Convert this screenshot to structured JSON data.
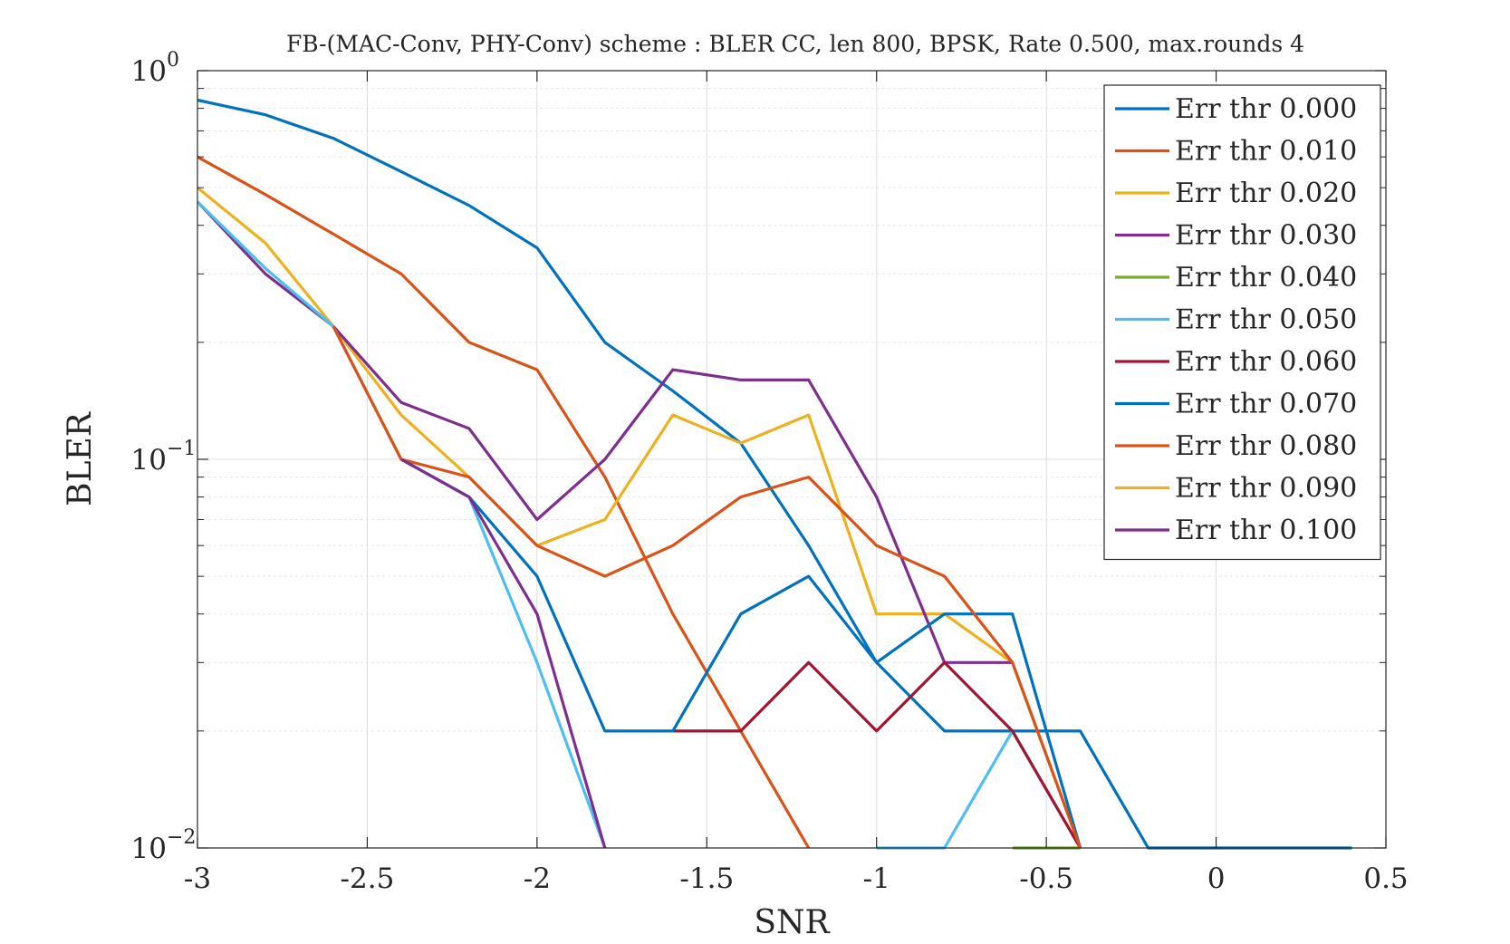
{
  "chart_data": {
    "type": "line",
    "title": "FB-(MAC-Conv, PHY-Conv) scheme : BLER CC, len 800, BPSK, Rate 0.500, max.rounds 4",
    "xlabel": "SNR",
    "ylabel": "BLER",
    "xlim": [
      -3,
      0.5
    ],
    "ylim": [
      0.01,
      1
    ],
    "yscale": "log",
    "grid": true,
    "legend_position": "top-right",
    "x_ticks": [
      "-3",
      "-2.5",
      "-2",
      "-1.5",
      "-1",
      "-0.5",
      "0",
      "0.5"
    ],
    "y_ticks": [
      {
        "base": "10",
        "exp": "0",
        "value": 1
      },
      {
        "base": "10",
        "exp": "−1",
        "value": 0.1
      },
      {
        "base": "10",
        "exp": "−2",
        "value": 0.01
      }
    ],
    "series": [
      {
        "name": "Err thr 0.000",
        "color": "#0072BD",
        "points": [
          [
            -3,
            0.84
          ],
          [
            -2.8,
            0.77
          ],
          [
            -2.6,
            0.67
          ],
          [
            -2.4,
            0.55
          ],
          [
            -2.2,
            0.45
          ],
          [
            -2.0,
            0.35
          ],
          [
            -1.8,
            0.2
          ],
          [
            -1.6,
            0.15
          ],
          [
            -1.4,
            0.11
          ],
          [
            -1.2,
            0.06
          ],
          [
            -1.0,
            0.03
          ],
          [
            -0.8,
            0.02
          ],
          [
            -0.6,
            0.02
          ],
          [
            -0.4,
            0.02
          ],
          [
            -0.2,
            0.01
          ],
          [
            0,
            0.01
          ],
          [
            0.2,
            0.01
          ],
          [
            0.4,
            0.01
          ]
        ]
      },
      {
        "name": "Err thr 0.010",
        "color": "#D95319",
        "points": [
          [
            -3,
            0.6
          ],
          [
            -2.8,
            0.48
          ],
          [
            -2.6,
            0.38
          ],
          [
            -2.4,
            0.3
          ],
          [
            -2.2,
            0.2
          ],
          [
            -2.0,
            0.17
          ],
          [
            -1.8,
            0.09
          ],
          [
            -1.6,
            0.04
          ],
          [
            -1.4,
            0.02
          ],
          [
            -1.2,
            0.01
          ]
        ]
      },
      {
        "name": "Err thr 0.020",
        "color": "#EDB120",
        "points": [
          [
            -3,
            0.5
          ],
          [
            -2.8,
            0.36
          ],
          [
            -2.6,
            0.22
          ],
          [
            -2.4,
            0.13
          ],
          [
            -2.2,
            0.09
          ],
          [
            -2.0,
            0.06
          ],
          [
            -1.8,
            0.07
          ],
          [
            -1.6,
            0.13
          ],
          [
            -1.4,
            0.11
          ],
          [
            -1.2,
            0.13
          ],
          [
            -1.0,
            0.04
          ],
          [
            -0.8,
            0.04
          ],
          [
            -0.6,
            0.03
          ],
          [
            -0.4,
            0.01
          ]
        ]
      },
      {
        "name": "Err thr 0.030",
        "color": "#7E2F8E",
        "points": [
          [
            -3,
            0.46
          ],
          [
            -2.8,
            0.3
          ],
          [
            -2.6,
            0.22
          ],
          [
            -2.4,
            0.14
          ],
          [
            -2.2,
            0.12
          ],
          [
            -2.0,
            0.07
          ],
          [
            -1.8,
            0.1
          ],
          [
            -1.6,
            0.17
          ],
          [
            -1.4,
            0.16
          ],
          [
            -1.2,
            0.16
          ],
          [
            -1.0,
            0.08
          ],
          [
            -0.8,
            0.03
          ],
          [
            -0.6,
            0.03
          ]
        ]
      },
      {
        "name": "Err thr 0.040",
        "color": "#77AC30",
        "points": [
          [
            -0.6,
            0.01
          ],
          [
            -0.4,
            0.01
          ]
        ]
      },
      {
        "name": "Err thr 0.050",
        "color": "#4DBEEE",
        "points": [
          [
            -3,
            0.46
          ],
          [
            -2.8,
            0.31
          ],
          [
            -2.6,
            0.22
          ],
          [
            -2.4,
            0.1
          ],
          [
            -2.2,
            0.08
          ],
          [
            -2.0,
            0.03
          ],
          [
            -1.8,
            0.01
          ],
          [
            null,
            null
          ],
          [
            -1.0,
            0.01
          ],
          [
            -0.8,
            0.01
          ],
          [
            -0.6,
            0.02
          ],
          [
            -0.4,
            0.01
          ]
        ]
      },
      {
        "name": "Err thr 0.060",
        "color": "#A2142F",
        "points": [
          [
            -1.6,
            0.02
          ],
          [
            -1.4,
            0.02
          ],
          [
            -1.2,
            0.03
          ],
          [
            -1.0,
            0.02
          ],
          [
            -0.8,
            0.03
          ],
          [
            -0.6,
            0.02
          ],
          [
            -0.4,
            0.01
          ]
        ]
      },
      {
        "name": "Err thr 0.070",
        "color": "#0072BD",
        "points": [
          [
            -2.4,
            0.1
          ],
          [
            -2.2,
            0.08
          ],
          [
            -2.0,
            0.05
          ],
          [
            -1.8,
            0.02
          ],
          [
            -1.6,
            0.02
          ],
          [
            -1.4,
            0.04
          ],
          [
            -1.2,
            0.05
          ],
          [
            -1.0,
            0.03
          ],
          [
            -0.8,
            0.04
          ],
          [
            -0.6,
            0.04
          ],
          [
            -0.4,
            0.01
          ]
        ]
      },
      {
        "name": "Err thr 0.080",
        "color": "#D95319",
        "points": [
          [
            -2.6,
            0.22
          ],
          [
            -2.4,
            0.1
          ],
          [
            -2.2,
            0.09
          ],
          [
            -2.0,
            0.06
          ],
          [
            -1.8,
            0.05
          ],
          [
            -1.6,
            0.06
          ],
          [
            -1.4,
            0.08
          ],
          [
            -1.2,
            0.09
          ],
          [
            -1.0,
            0.06
          ],
          [
            -0.8,
            0.05
          ],
          [
            -0.6,
            0.03
          ],
          [
            -0.4,
            0.01
          ]
        ]
      },
      {
        "name": "Err thr 0.090",
        "color": "#EDB120",
        "points": []
      },
      {
        "name": "Err thr 0.100",
        "color": "#7E2F8E",
        "points": [
          [
            -2.4,
            0.1
          ],
          [
            -2.2,
            0.08
          ],
          [
            -2.0,
            0.04
          ],
          [
            -1.8,
            0.01
          ]
        ]
      }
    ]
  }
}
